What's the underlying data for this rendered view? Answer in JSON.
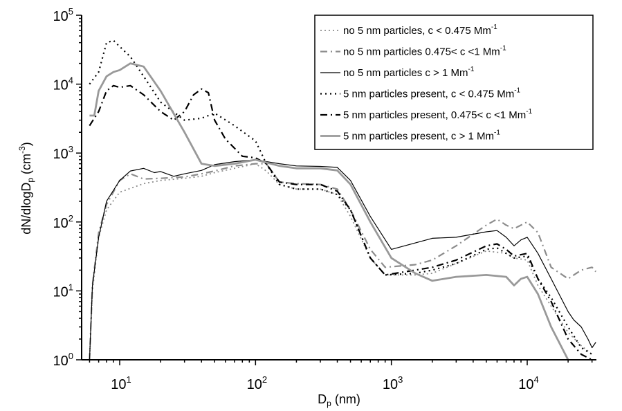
{
  "chart_data": {
    "type": "line",
    "xlabel": "D_p (nm)",
    "ylabel": "dN/dlogD_p (cm^-3)",
    "x_scale": "log",
    "y_scale": "log",
    "xlim": [
      5.5,
      32000
    ],
    "ylim": [
      1,
      100000
    ],
    "x_ticks": [
      {
        "value": 10,
        "base": "10",
        "exp": "1"
      },
      {
        "value": 100,
        "base": "10",
        "exp": "2"
      },
      {
        "value": 1000,
        "base": "10",
        "exp": "3"
      },
      {
        "value": 10000,
        "base": "10",
        "exp": "4"
      }
    ],
    "y_ticks": [
      {
        "value": 1,
        "base": "10",
        "exp": "0"
      },
      {
        "value": 10,
        "base": "10",
        "exp": "1"
      },
      {
        "value": 100,
        "base": "10",
        "exp": "2"
      },
      {
        "value": 1000,
        "base": "10",
        "exp": "3"
      },
      {
        "value": 10000,
        "base": "10",
        "exp": "4"
      },
      {
        "value": 100000,
        "base": "10",
        "exp": "5"
      }
    ],
    "grid": false,
    "legend_position": "top-right",
    "series": [
      {
        "name": "no 5 nm particles, c < 0.475 Mm-1",
        "legend": {
          "text": "no 5 nm particles, c < 0.475 Mm",
          "sup": "-1"
        },
        "color": "#8c8c8c",
        "dash": "2,4",
        "width": 1.8,
        "points": [
          [
            6,
            1
          ],
          [
            6.3,
            10
          ],
          [
            7,
            60
          ],
          [
            8,
            150
          ],
          [
            10,
            270
          ],
          [
            15,
            360
          ],
          [
            20,
            400
          ],
          [
            30,
            430
          ],
          [
            40,
            460
          ],
          [
            50,
            520
          ],
          [
            70,
            600
          ],
          [
            100,
            700
          ],
          [
            120,
            550
          ],
          [
            150,
            350
          ],
          [
            200,
            300
          ],
          [
            300,
            300
          ],
          [
            400,
            250
          ],
          [
            500,
            120
          ],
          [
            700,
            30
          ],
          [
            900,
            17
          ],
          [
            1500,
            17
          ],
          [
            2000,
            18
          ],
          [
            3000,
            25
          ],
          [
            5000,
            38
          ],
          [
            7000,
            35
          ],
          [
            8000,
            30
          ],
          [
            10000,
            28
          ],
          [
            12000,
            12
          ],
          [
            15000,
            6
          ],
          [
            20000,
            2.5
          ],
          [
            25000,
            1.6
          ],
          [
            30000,
            1.2
          ]
        ]
      },
      {
        "name": "no 5 nm particles 0.475< c <1 Mm-1",
        "legend": {
          "text": "no  5 nm particles 0.475< c <1 Mm",
          "sup": "-1"
        },
        "color": "#8c8c8c",
        "dash": "10,5,2,5",
        "width": 2.2,
        "points": [
          [
            6,
            1
          ],
          [
            6.3,
            12
          ],
          [
            7,
            70
          ],
          [
            8,
            180
          ],
          [
            10,
            400
          ],
          [
            12,
            500
          ],
          [
            15,
            420
          ],
          [
            20,
            430
          ],
          [
            30,
            450
          ],
          [
            40,
            500
          ],
          [
            50,
            550
          ],
          [
            70,
            650
          ],
          [
            100,
            700
          ],
          [
            120,
            700
          ],
          [
            150,
            380
          ],
          [
            200,
            360
          ],
          [
            300,
            350
          ],
          [
            400,
            300
          ],
          [
            500,
            150
          ],
          [
            700,
            40
          ],
          [
            900,
            22
          ],
          [
            1500,
            24
          ],
          [
            2000,
            28
          ],
          [
            3000,
            45
          ],
          [
            5000,
            90
          ],
          [
            6000,
            110
          ],
          [
            7000,
            90
          ],
          [
            8000,
            80
          ],
          [
            10000,
            100
          ],
          [
            12000,
            70
          ],
          [
            15000,
            22
          ],
          [
            20000,
            15
          ],
          [
            25000,
            20
          ],
          [
            30000,
            22
          ],
          [
            32000,
            19
          ]
        ]
      },
      {
        "name": "no 5 nm particles c > 1 Mm-1",
        "legend": {
          "text": "no 5 nm particles c > 1 Mm",
          "sup": "-1"
        },
        "color": "#000000",
        "dash": "",
        "width": 1.2,
        "points": [
          [
            6,
            1
          ],
          [
            6.3,
            12
          ],
          [
            7,
            60
          ],
          [
            8,
            200
          ],
          [
            10,
            400
          ],
          [
            12,
            550
          ],
          [
            15,
            600
          ],
          [
            18,
            520
          ],
          [
            20,
            540
          ],
          [
            25,
            460
          ],
          [
            30,
            500
          ],
          [
            40,
            560
          ],
          [
            50,
            680
          ],
          [
            70,
            750
          ],
          [
            100,
            800
          ],
          [
            150,
            700
          ],
          [
            200,
            650
          ],
          [
            300,
            640
          ],
          [
            400,
            620
          ],
          [
            500,
            400
          ],
          [
            700,
            120
          ],
          [
            1000,
            40
          ],
          [
            2000,
            58
          ],
          [
            3000,
            60
          ],
          [
            5000,
            72
          ],
          [
            6000,
            75
          ],
          [
            7000,
            60
          ],
          [
            8000,
            45
          ],
          [
            9000,
            55
          ],
          [
            10000,
            60
          ],
          [
            12000,
            35
          ],
          [
            15000,
            15
          ],
          [
            20000,
            5
          ],
          [
            22000,
            3.8
          ],
          [
            25000,
            3
          ],
          [
            28000,
            2
          ],
          [
            30000,
            1.5
          ],
          [
            32000,
            1.8
          ]
        ]
      },
      {
        "name": "5 nm particles present, c < 0.475 Mm-1",
        "legend": {
          "text": " 5 nm particles present, c < 0.475 Mm",
          "sup": "-1"
        },
        "color": "#000000",
        "dash": "2,5",
        "width": 2.2,
        "points": [
          [
            6,
            10000
          ],
          [
            7,
            15000
          ],
          [
            8,
            40000
          ],
          [
            9,
            43000
          ],
          [
            10,
            35000
          ],
          [
            12,
            25000
          ],
          [
            15,
            13000
          ],
          [
            20,
            5500
          ],
          [
            30,
            3000
          ],
          [
            40,
            3200
          ],
          [
            50,
            3800
          ],
          [
            70,
            2500
          ],
          [
            100,
            1500
          ],
          [
            120,
            700
          ],
          [
            150,
            350
          ],
          [
            200,
            300
          ],
          [
            300,
            300
          ],
          [
            400,
            250
          ],
          [
            500,
            150
          ],
          [
            700,
            30
          ],
          [
            900,
            17
          ],
          [
            1500,
            18
          ],
          [
            2000,
            20
          ],
          [
            3000,
            25
          ],
          [
            5000,
            40
          ],
          [
            6000,
            42
          ],
          [
            7000,
            35
          ],
          [
            8000,
            30
          ],
          [
            10000,
            32
          ],
          [
            12000,
            15
          ],
          [
            15000,
            8
          ],
          [
            20000,
            3
          ],
          [
            25000,
            1.5
          ],
          [
            30000,
            1.2
          ]
        ]
      },
      {
        "name": "5 nm particles present, 0.475< c <1 Mm-1",
        "legend": {
          "text": "5 nm particles present, 0.475< c <1 Mm",
          "sup": "-1"
        },
        "color": "#000000",
        "dash": "10,5,2,5",
        "width": 2.2,
        "points": [
          [
            6,
            2500
          ],
          [
            7,
            4000
          ],
          [
            8,
            8000
          ],
          [
            9,
            9500
          ],
          [
            10,
            9000
          ],
          [
            12,
            9500
          ],
          [
            15,
            7000
          ],
          [
            20,
            4000
          ],
          [
            25,
            3000
          ],
          [
            30,
            4000
          ],
          [
            35,
            7000
          ],
          [
            40,
            8500
          ],
          [
            45,
            7500
          ],
          [
            50,
            3000
          ],
          [
            60,
            1600
          ],
          [
            80,
            900
          ],
          [
            100,
            850
          ],
          [
            120,
            700
          ],
          [
            150,
            380
          ],
          [
            200,
            350
          ],
          [
            300,
            350
          ],
          [
            400,
            280
          ],
          [
            500,
            150
          ],
          [
            700,
            30
          ],
          [
            900,
            17
          ],
          [
            1500,
            20
          ],
          [
            2000,
            22
          ],
          [
            3000,
            28
          ],
          [
            5000,
            45
          ],
          [
            6000,
            48
          ],
          [
            7000,
            40
          ],
          [
            8000,
            32
          ],
          [
            10000,
            35
          ],
          [
            12000,
            15
          ],
          [
            15000,
            7
          ],
          [
            20000,
            2
          ],
          [
            25000,
            1.2
          ],
          [
            30000,
            1
          ]
        ]
      },
      {
        "name": "5 nm particles present, c > 1 Mm-1",
        "legend": {
          "text": "5 nm particles present, c > 1 Mm",
          "sup": "-1"
        },
        "color": "#999999",
        "dash": "",
        "width": 2.8,
        "points": [
          [
            6,
            3500
          ],
          [
            6.5,
            3500
          ],
          [
            7,
            8000
          ],
          [
            8,
            13000
          ],
          [
            9,
            15000
          ],
          [
            10,
            16000
          ],
          [
            12,
            20000
          ],
          [
            15,
            18000
          ],
          [
            20,
            8000
          ],
          [
            30,
            2000
          ],
          [
            40,
            700
          ],
          [
            50,
            650
          ],
          [
            70,
            700
          ],
          [
            100,
            800
          ],
          [
            150,
            650
          ],
          [
            200,
            600
          ],
          [
            300,
            600
          ],
          [
            400,
            560
          ],
          [
            500,
            350
          ],
          [
            700,
            100
          ],
          [
            1000,
            30
          ],
          [
            1500,
            18
          ],
          [
            2000,
            14
          ],
          [
            3000,
            16
          ],
          [
            5000,
            17
          ],
          [
            7000,
            16
          ],
          [
            8000,
            12
          ],
          [
            9000,
            15
          ],
          [
            10000,
            16
          ],
          [
            12000,
            9
          ],
          [
            15000,
            3
          ],
          [
            20000,
            1
          ],
          [
            22000,
            0.8
          ]
        ]
      }
    ]
  }
}
